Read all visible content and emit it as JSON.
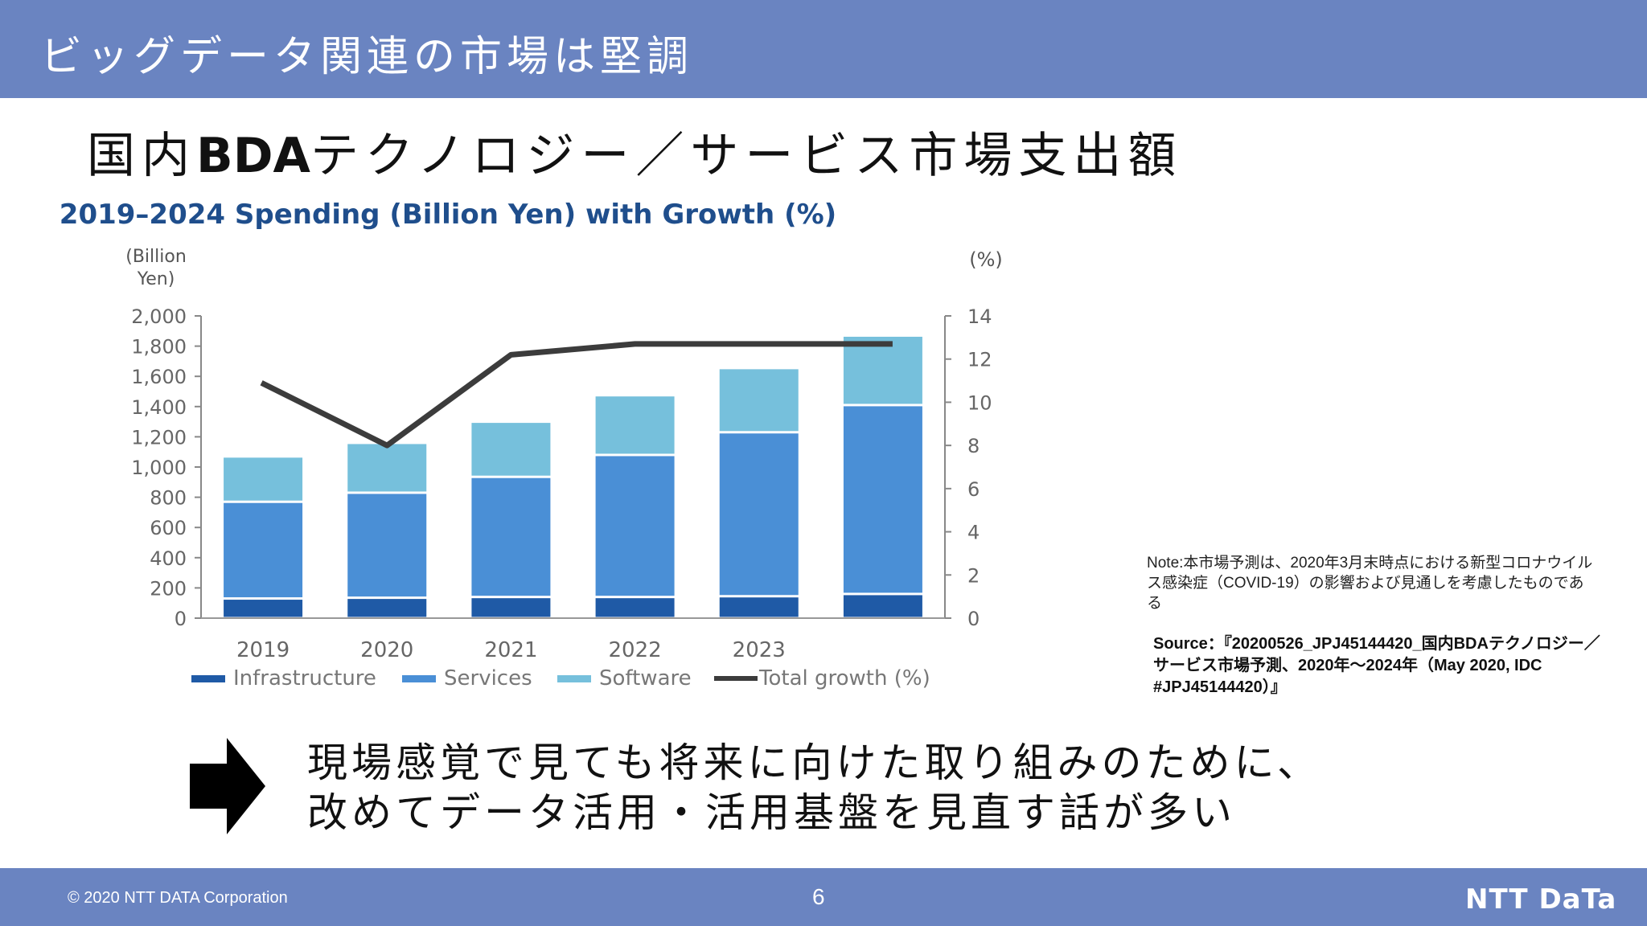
{
  "header": {
    "title": "ビッグデータ関連の市場は堅調"
  },
  "subtitle": {
    "prefix": "国内",
    "bold": "BDA",
    "suffix": "テクノロジー／サービス市場支出額"
  },
  "chart_data": {
    "type": "bar",
    "stacked": true,
    "title": "2019–2024 Spending (Billion Yen) with Growth (%)",
    "ylabel_left": "(Billion Yen)",
    "ylabel_right": "(%)",
    "categories": [
      "2019",
      "2020",
      "2021",
      "2022",
      "2023",
      ""
    ],
    "ylim": [
      0,
      2000
    ],
    "yticks": [
      0,
      200,
      400,
      600,
      800,
      1000,
      1200,
      1400,
      1600,
      1800,
      2000
    ],
    "ytick_labels": [
      "0",
      "200",
      "400",
      "600",
      "800",
      "1,000",
      "1,200",
      "1,400",
      "1,600",
      "1,800",
      "2,000"
    ],
    "y2lim": [
      0,
      14
    ],
    "y2ticks": [
      0,
      2,
      4,
      6,
      8,
      10,
      12,
      14
    ],
    "y2tick_labels": [
      "0",
      "2",
      "4",
      "6",
      "8",
      "10",
      "12",
      "14"
    ],
    "series": [
      {
        "name": "Infrastructure",
        "values": [
          130,
          135,
          140,
          140,
          145,
          160
        ],
        "color": "#1f5aa6"
      },
      {
        "name": "Services",
        "values": [
          640,
          695,
          795,
          940,
          1085,
          1250
        ],
        "color": "#4a8fd6"
      },
      {
        "name": "Software",
        "values": [
          300,
          330,
          365,
          395,
          425,
          460
        ],
        "color": "#76c0dc"
      }
    ],
    "line_series": {
      "name": "Total growth (%)",
      "values": [
        10.9,
        8.0,
        12.2,
        12.7,
        12.7,
        12.7
      ],
      "color": "#3c3c3c"
    },
    "legend_position": "bottom",
    "grid": false
  },
  "note": "Note:本市場予測は、2020年3月末時点における新型コロナウイルス感染症（COVID-19）の影響および見通しを考慮したものである",
  "source": {
    "label": "Source：",
    "text": "『20200526_JPJ45144420_国内BDAテクノロジー／サービス市場予測、2020年～2024年（May 2020, IDC #JPJ45144420）』"
  },
  "conclusion": {
    "line1": "現場感覚で見ても将来に向けた取り組みのために、",
    "line2": "改めてデータ活用・活用基盤を見直す話が多い"
  },
  "footer": {
    "copyright": "© 2020 NTT DATA Corporation",
    "page": "6",
    "logo": "NTT DaTa"
  },
  "colors": {
    "header_bar": "#6a84c1",
    "chart_title": "#1f4e8c"
  }
}
